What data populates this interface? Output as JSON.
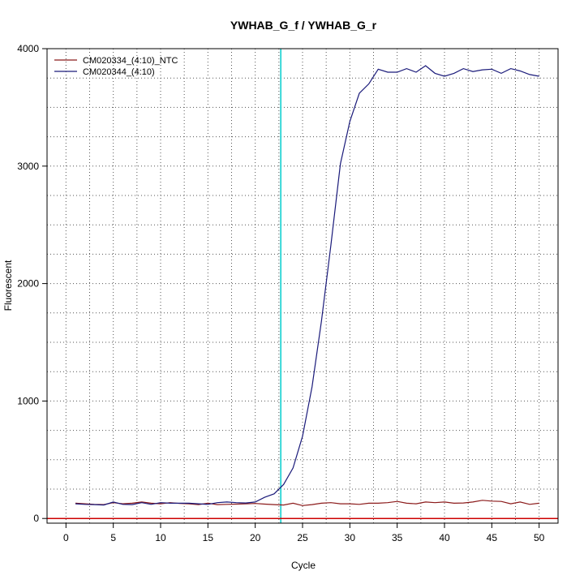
{
  "chart_data": {
    "type": "line",
    "title": "YWHAB_G_f / YWHAB_G_r",
    "xlabel": "Cycle",
    "ylabel": "Fluorescent",
    "xlim": [
      -2,
      52
    ],
    "ylim": [
      -40,
      4000
    ],
    "x_ticks": [
      0,
      5,
      10,
      15,
      20,
      25,
      30,
      35,
      40,
      45,
      50
    ],
    "y_ticks": [
      0,
      1000,
      2000,
      3000,
      4000
    ],
    "grid": true,
    "grid_style": "dotted",
    "legend_position": "top-left",
    "threshold_line": {
      "x": 22.7,
      "color": "#00cccc"
    },
    "baseline_line": {
      "y": 0,
      "color": "#cc0000"
    },
    "series": [
      {
        "name": "CM020334_(4:10)_NTC",
        "color": "#8b1a1a",
        "x": [
          1,
          2,
          3,
          4,
          5,
          6,
          7,
          8,
          9,
          10,
          11,
          12,
          13,
          14,
          15,
          16,
          17,
          18,
          19,
          20,
          21,
          22,
          23,
          24,
          25,
          26,
          27,
          28,
          29,
          30,
          31,
          32,
          33,
          34,
          35,
          36,
          37,
          38,
          39,
          40,
          41,
          42,
          43,
          44,
          45,
          46,
          47,
          48,
          49,
          50
        ],
        "values": [
          130,
          125,
          120,
          118,
          135,
          125,
          130,
          140,
          130,
          125,
          135,
          128,
          125,
          118,
          130,
          118,
          120,
          122,
          125,
          128,
          122,
          118,
          115,
          130,
          110,
          118,
          130,
          135,
          125,
          125,
          120,
          130,
          130,
          135,
          145,
          130,
          125,
          140,
          135,
          140,
          130,
          132,
          140,
          155,
          148,
          145,
          125,
          140,
          120,
          130
        ]
      },
      {
        "name": "CM020344_(4:10)",
        "color": "#1a1a7a",
        "x": [
          1,
          2,
          3,
          4,
          5,
          6,
          7,
          8,
          9,
          10,
          11,
          12,
          13,
          14,
          15,
          16,
          17,
          18,
          19,
          20,
          21,
          22,
          23,
          24,
          25,
          26,
          27,
          28,
          29,
          30,
          31,
          32,
          33,
          34,
          35,
          36,
          37,
          38,
          39,
          40,
          41,
          42,
          43,
          44,
          45,
          46,
          47,
          48,
          49,
          50
        ],
        "values": [
          125,
          120,
          118,
          115,
          140,
          120,
          118,
          135,
          120,
          135,
          130,
          130,
          130,
          125,
          120,
          135,
          140,
          135,
          132,
          140,
          180,
          210,
          290,
          430,
          700,
          1120,
          1680,
          2330,
          3020,
          3380,
          3620,
          3700,
          3825,
          3800,
          3800,
          3830,
          3800,
          3855,
          3790,
          3765,
          3790,
          3830,
          3805,
          3820,
          3825,
          3790,
          3830,
          3810,
          3780,
          3765
        ]
      }
    ]
  }
}
